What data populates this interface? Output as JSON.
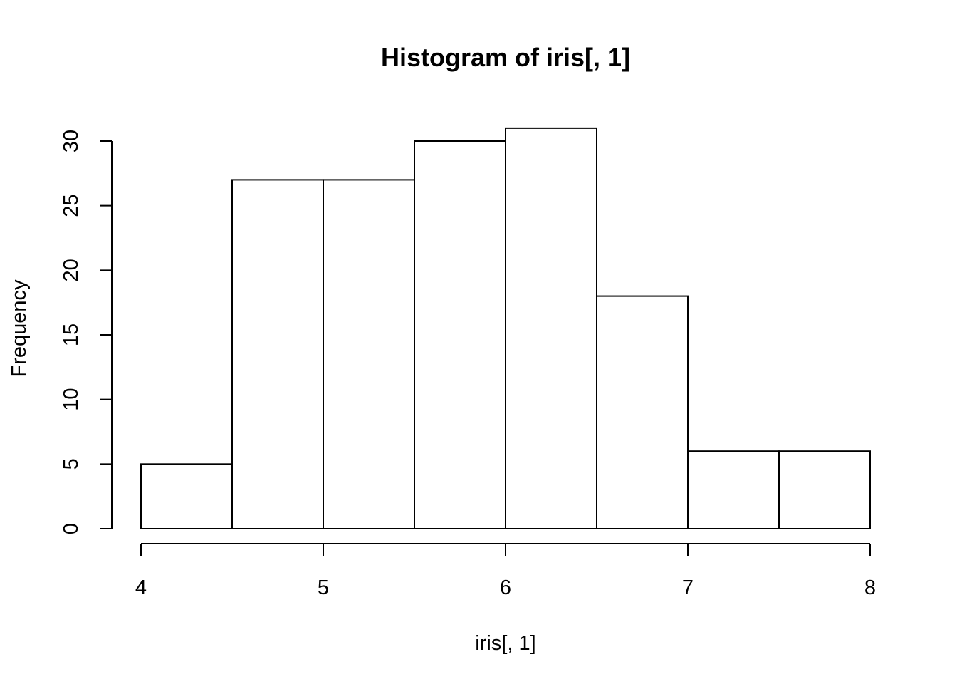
{
  "chart_data": {
    "type": "bar",
    "title": "Histogram of iris[, 1]",
    "xlabel": "iris[, 1]",
    "ylabel": "Frequency",
    "bins": [
      {
        "from": 4.0,
        "to": 4.5,
        "count": 5
      },
      {
        "from": 4.5,
        "to": 5.0,
        "count": 27
      },
      {
        "from": 5.0,
        "to": 5.5,
        "count": 27
      },
      {
        "from": 5.5,
        "to": 6.0,
        "count": 30
      },
      {
        "from": 6.0,
        "to": 6.5,
        "count": 31
      },
      {
        "from": 6.5,
        "to": 7.0,
        "count": 18
      },
      {
        "from": 7.0,
        "to": 7.5,
        "count": 6
      },
      {
        "from": 7.5,
        "to": 8.0,
        "count": 6
      }
    ],
    "xlim": [
      4,
      8
    ],
    "ylim": [
      0,
      30
    ],
    "x_ticks": [
      "4",
      "5",
      "6",
      "7",
      "8"
    ],
    "y_ticks": [
      "0",
      "5",
      "10",
      "15",
      "20",
      "25",
      "30"
    ],
    "grid": false,
    "colors": {
      "bar_fill": "#ffffff",
      "bar_stroke": "#000000"
    }
  }
}
